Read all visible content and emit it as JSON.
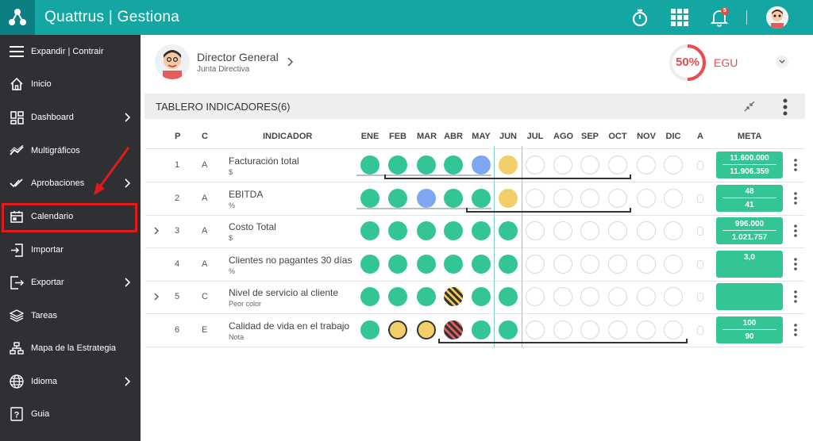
{
  "app": {
    "title": "Quattrus | Gestiona",
    "notification_count": "5"
  },
  "sidebar": {
    "items": [
      {
        "label": "Expandir | Contrair",
        "icon": "menu-icon",
        "chevron": false
      },
      {
        "label": "Inicio",
        "icon": "home-icon",
        "chevron": false
      },
      {
        "label": "Dashboard",
        "icon": "dashboard-icon",
        "chevron": true
      },
      {
        "label": "Multigráficos",
        "icon": "chart-line-icon",
        "chevron": false
      },
      {
        "label": "Aprobaciones",
        "icon": "double-check-icon",
        "chevron": true
      },
      {
        "label": "Calendario",
        "icon": "calendar-icon",
        "chevron": false
      },
      {
        "label": "Importar",
        "icon": "import-icon",
        "chevron": false
      },
      {
        "label": "Exportar",
        "icon": "export-icon",
        "chevron": true
      },
      {
        "label": "Tareas",
        "icon": "layers-icon",
        "chevron": false
      },
      {
        "label": "Mapa de la Estrategia",
        "icon": "strategy-map-icon",
        "chevron": false
      },
      {
        "label": "Idioma",
        "icon": "globe-icon",
        "chevron": true
      },
      {
        "label": "Guia",
        "icon": "help-icon",
        "chevron": false
      }
    ],
    "highlighted_item": "Calendario"
  },
  "profile": {
    "title": "Director General",
    "subtitle": "Junta Directiva"
  },
  "gauge": {
    "percent_label": "50%",
    "value": 0.5,
    "label": "EGU",
    "color": "#ea4c4c"
  },
  "board": {
    "title": "TABLERO INDICADORES(6)",
    "headers": {
      "p": "P",
      "c": "C",
      "indicator": "INDICADOR",
      "months": [
        "ENE",
        "FEB",
        "MAR",
        "ABR",
        "MAY",
        "JUN",
        "JUL",
        "AGO",
        "SEP",
        "OCT",
        "NOV",
        "DIC"
      ],
      "a": "A",
      "meta": "META"
    },
    "rows": [
      {
        "p": "1",
        "c": "A",
        "name": "Facturación total",
        "unit": "$",
        "expandable": false,
        "status": [
          "green",
          "green",
          "green",
          "green",
          "blue",
          "yellow",
          "empty",
          "empty",
          "empty",
          "empty",
          "empty",
          "empty"
        ],
        "meta_top": "11.600.000",
        "meta_bottom": "11.906.359"
      },
      {
        "p": "2",
        "c": "A",
        "name": "EBITDA",
        "unit": "%",
        "expandable": false,
        "status": [
          "green",
          "green",
          "blue",
          "green",
          "green",
          "yellow",
          "empty",
          "empty",
          "empty",
          "empty",
          "empty",
          "empty"
        ],
        "meta_top": "48",
        "meta_bottom": "41"
      },
      {
        "p": "3",
        "c": "A",
        "name": "Costo Total",
        "unit": "$",
        "expandable": true,
        "status": [
          "green",
          "green",
          "green",
          "green",
          "green",
          "green",
          "empty",
          "empty",
          "empty",
          "empty",
          "empty",
          "empty"
        ],
        "meta_top": "996.000",
        "meta_bottom": "1.021.757"
      },
      {
        "p": "4",
        "c": "A",
        "name": "Clientes no pagantes 30 días",
        "unit": "%",
        "expandable": false,
        "status": [
          "green",
          "green",
          "green",
          "green",
          "green",
          "green",
          "empty",
          "empty",
          "empty",
          "empty",
          "empty",
          "empty"
        ],
        "meta_top": "3,0",
        "meta_bottom": ""
      },
      {
        "p": "5",
        "c": "C",
        "name": "Nivel de servicio al cliente",
        "unit": "Peor color",
        "expandable": true,
        "status": [
          "green",
          "green",
          "green",
          "stripe-y",
          "green",
          "green",
          "empty",
          "empty",
          "empty",
          "empty",
          "empty",
          "empty"
        ],
        "meta_top": "",
        "meta_bottom": ""
      },
      {
        "p": "6",
        "c": "E",
        "name": "Calidad de vida en el trabajo",
        "unit": "Nota",
        "expandable": false,
        "status": [
          "green",
          "yellow-bd",
          "yellow-bd",
          "stripe-r",
          "green",
          "green",
          "empty",
          "empty",
          "empty",
          "empty",
          "empty",
          "empty"
        ],
        "meta_top": "100",
        "meta_bottom": "90"
      }
    ]
  },
  "colors": {
    "topbar": "#13a6a3",
    "sidebar": "#2f3033",
    "green": "#33c596",
    "blue": "#7ea6f3",
    "yellow": "#f2cf6a",
    "red": "#e35d5d",
    "highlight": "#e01b1b"
  }
}
